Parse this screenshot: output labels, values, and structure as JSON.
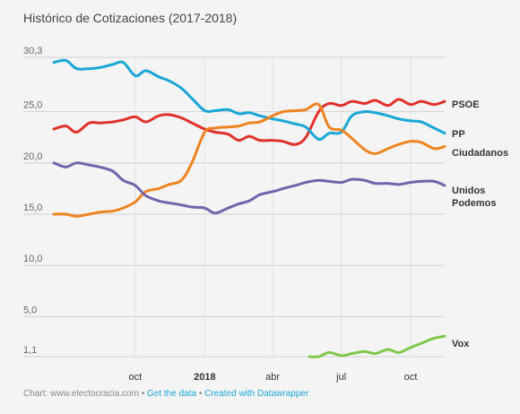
{
  "chart_data": {
    "type": "line",
    "title": "Histórico de Cotizaciones (2017-2018)",
    "xlabel": "",
    "ylabel": "",
    "y_ticks": [
      "30,3",
      "25,0",
      "20,0",
      "15,0",
      "10,0",
      "5,0",
      "1,1"
    ],
    "y_tick_values": [
      30.3,
      25,
      20,
      15,
      10,
      5,
      1.1
    ],
    "ylim": [
      1.1,
      30.3
    ],
    "x_ticks": [
      "oct",
      "2018",
      "abr",
      "jul",
      "oct"
    ],
    "x_tick_values": [
      "2017-10-01",
      "2018-01-01",
      "2018-04-01",
      "2018-07-01",
      "2018-10-01"
    ],
    "xlim": [
      "2017-06-15",
      "2018-11-15"
    ],
    "series": [
      {
        "name": "PSOE",
        "color": "#e0302a",
        "x": [
          "2017-06-15",
          "2017-07-01",
          "2017-07-15",
          "2017-08-01",
          "2017-08-15",
          "2017-09-01",
          "2017-09-15",
          "2017-10-01",
          "2017-10-15",
          "2017-11-01",
          "2017-11-15",
          "2017-12-01",
          "2017-12-15",
          "2018-01-01",
          "2018-01-15",
          "2018-02-01",
          "2018-02-15",
          "2018-03-01",
          "2018-03-15",
          "2018-04-01",
          "2018-04-15",
          "2018-05-01",
          "2018-05-15",
          "2018-06-01",
          "2018-06-15",
          "2018-07-01",
          "2018-07-15",
          "2018-08-01",
          "2018-08-15",
          "2018-09-01",
          "2018-09-15",
          "2018-10-01",
          "2018-10-15",
          "2018-11-01",
          "2018-11-15"
        ],
        "values": [
          23.3,
          23.6,
          23.0,
          23.9,
          23.9,
          24.0,
          24.2,
          24.5,
          24.0,
          24.6,
          24.7,
          24.4,
          23.9,
          23.3,
          23.0,
          22.8,
          22.2,
          22.6,
          22.2,
          22.2,
          22.1,
          21.8,
          22.5,
          25.0,
          25.8,
          25.6,
          26.0,
          25.8,
          26.1,
          25.6,
          26.2,
          25.7,
          26.0,
          25.7,
          26.0
        ]
      },
      {
        "name": "PP",
        "color": "#1aa6d6",
        "x": [
          "2017-06-15",
          "2017-07-01",
          "2017-07-15",
          "2017-08-01",
          "2017-08-15",
          "2017-09-01",
          "2017-09-15",
          "2017-10-01",
          "2017-10-15",
          "2017-11-01",
          "2017-11-15",
          "2017-12-01",
          "2017-12-15",
          "2018-01-01",
          "2018-01-15",
          "2018-02-01",
          "2018-02-15",
          "2018-03-01",
          "2018-03-15",
          "2018-04-01",
          "2018-04-15",
          "2018-05-01",
          "2018-05-15",
          "2018-06-01",
          "2018-06-15",
          "2018-07-01",
          "2018-07-15",
          "2018-08-01",
          "2018-08-15",
          "2018-09-01",
          "2018-09-15",
          "2018-10-01",
          "2018-10-15",
          "2018-11-01",
          "2018-11-15"
        ],
        "values": [
          29.8,
          30.0,
          29.2,
          29.2,
          29.3,
          29.6,
          29.8,
          28.5,
          29.0,
          28.4,
          28.0,
          27.3,
          26.3,
          25.1,
          25.1,
          25.2,
          24.8,
          24.9,
          24.6,
          24.3,
          24.1,
          23.8,
          23.5,
          22.3,
          22.9,
          23.0,
          24.6,
          25.0,
          24.9,
          24.6,
          24.3,
          24.1,
          24.0,
          23.4,
          22.9
        ]
      },
      {
        "name": "Ciudadanos",
        "color": "#ee8420",
        "x": [
          "2017-06-15",
          "2017-07-01",
          "2017-07-15",
          "2017-08-01",
          "2017-08-15",
          "2017-09-01",
          "2017-09-15",
          "2017-10-01",
          "2017-10-15",
          "2017-11-01",
          "2017-11-15",
          "2017-12-01",
          "2017-12-15",
          "2018-01-01",
          "2018-01-15",
          "2018-02-01",
          "2018-02-15",
          "2018-03-01",
          "2018-03-15",
          "2018-04-01",
          "2018-04-15",
          "2018-05-01",
          "2018-05-15",
          "2018-06-01",
          "2018-06-15",
          "2018-07-01",
          "2018-07-15",
          "2018-08-01",
          "2018-08-15",
          "2018-09-01",
          "2018-09-15",
          "2018-10-01",
          "2018-10-15",
          "2018-11-01",
          "2018-11-15"
        ],
        "values": [
          15.0,
          15.0,
          14.8,
          15.0,
          15.2,
          15.3,
          15.6,
          16.2,
          17.2,
          17.5,
          17.9,
          18.3,
          20.0,
          23.0,
          23.4,
          23.5,
          23.6,
          23.9,
          24.0,
          24.6,
          25.0,
          25.1,
          25.2,
          25.7,
          23.5,
          23.2,
          22.4,
          21.3,
          20.9,
          21.4,
          21.8,
          22.1,
          22.0,
          21.4,
          21.6
        ]
      },
      {
        "name": "Unidos Podemos",
        "color": "#7462ab",
        "x": [
          "2017-06-15",
          "2017-07-01",
          "2017-07-15",
          "2017-08-01",
          "2017-08-15",
          "2017-09-01",
          "2017-09-15",
          "2017-10-01",
          "2017-10-15",
          "2017-11-01",
          "2017-11-15",
          "2017-12-01",
          "2017-12-15",
          "2018-01-01",
          "2018-01-15",
          "2018-02-01",
          "2018-02-15",
          "2018-03-01",
          "2018-03-15",
          "2018-04-01",
          "2018-04-15",
          "2018-05-01",
          "2018-05-15",
          "2018-06-01",
          "2018-06-15",
          "2018-07-01",
          "2018-07-15",
          "2018-08-01",
          "2018-08-15",
          "2018-09-01",
          "2018-09-15",
          "2018-10-01",
          "2018-10-15",
          "2018-11-01",
          "2018-11-15"
        ],
        "values": [
          20.0,
          19.6,
          20.0,
          19.8,
          19.6,
          19.2,
          18.3,
          17.8,
          16.8,
          16.3,
          16.1,
          15.9,
          15.7,
          15.6,
          15.1,
          15.6,
          16.0,
          16.3,
          16.9,
          17.2,
          17.5,
          17.8,
          18.1,
          18.3,
          18.2,
          18.1,
          18.4,
          18.3,
          18.0,
          18.0,
          17.9,
          18.1,
          18.2,
          18.2,
          17.8
        ]
      },
      {
        "name": "Vox",
        "color": "#7fc84a",
        "x": [
          "2018-05-20",
          "2018-06-01",
          "2018-06-15",
          "2018-07-01",
          "2018-07-15",
          "2018-08-01",
          "2018-08-15",
          "2018-09-01",
          "2018-09-15",
          "2018-10-01",
          "2018-10-15",
          "2018-11-01",
          "2018-11-15"
        ],
        "values": [
          1.1,
          1.1,
          1.5,
          1.2,
          1.4,
          1.6,
          1.4,
          1.8,
          1.5,
          2.0,
          2.4,
          2.9,
          3.1
        ]
      }
    ],
    "legend": [
      "PSOE",
      "PP",
      "Ciudadanos",
      "Unidos Podemos",
      "Vox"
    ],
    "grid": true,
    "legend_placement": "right"
  },
  "labels": {
    "psoe": "PSOE",
    "pp": "PP",
    "ciudadanos": "Ciudadanos",
    "unidos_line1": "Unidos",
    "unidos_line2": "Podemos",
    "vox": "Vox"
  },
  "footer": {
    "source": "Chart: www.electocracia.com",
    "sep1": " • ",
    "get_data": "Get the data",
    "sep2": " • ",
    "created": "Created with Datawrapper"
  }
}
